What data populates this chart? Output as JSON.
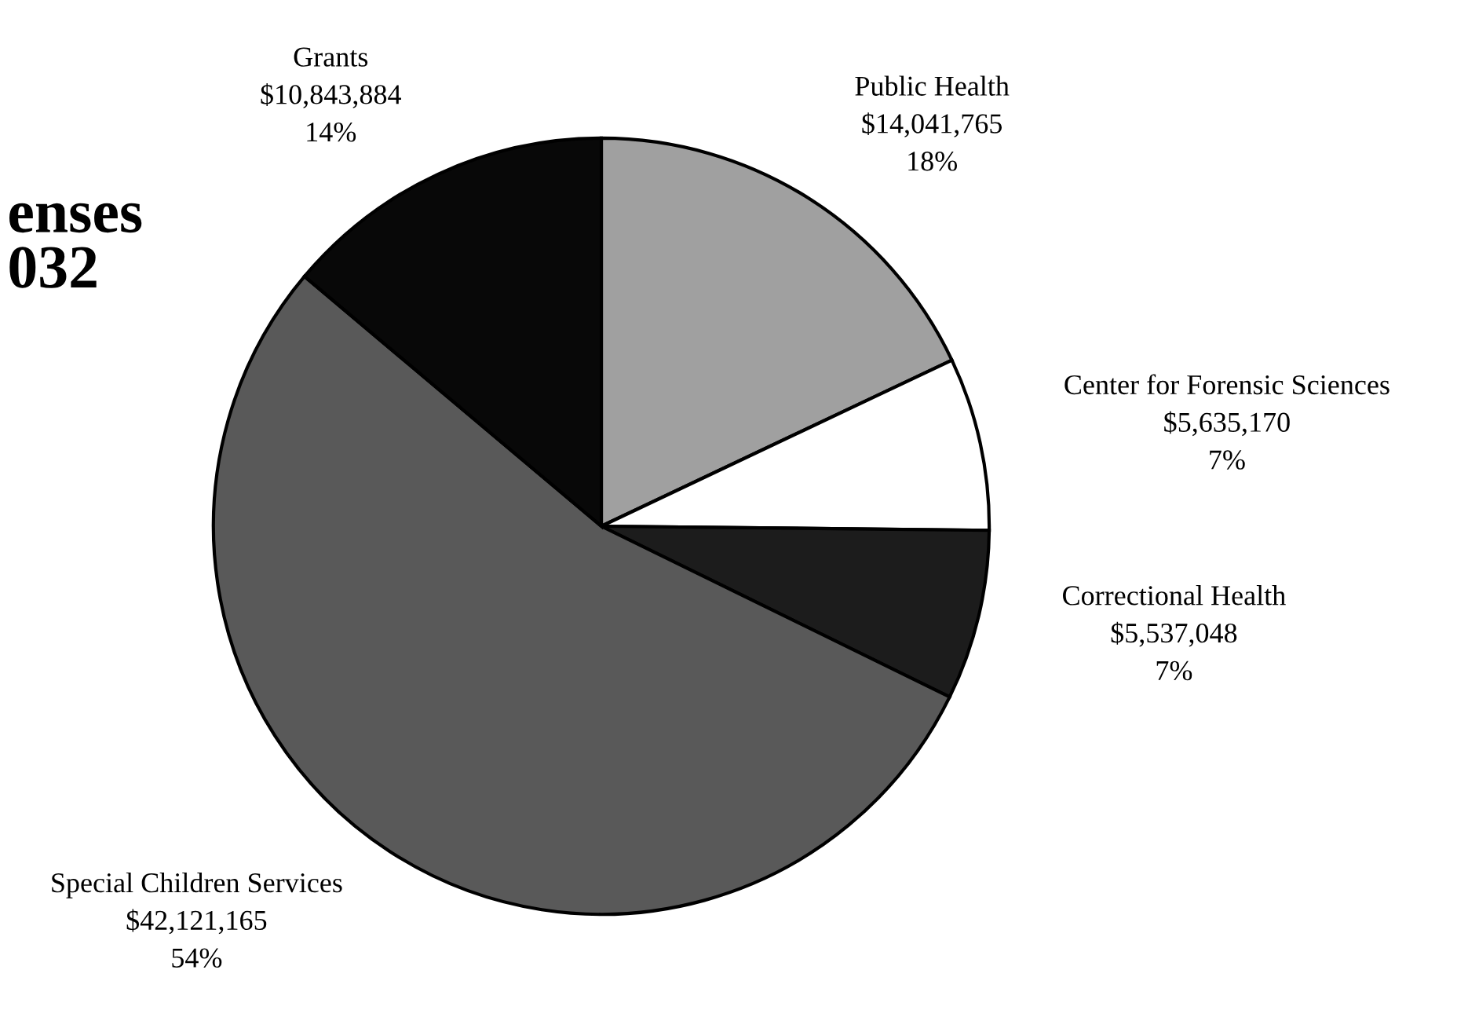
{
  "chart_data": {
    "type": "pie",
    "title": "enses\n032",
    "categories": [
      "Public Health",
      "Center for Forensic Sciences",
      "Correctional Health",
      "Special Children Services",
      "Grants"
    ],
    "values": [
      14041765,
      5635170,
      5537048,
      42121165,
      10843884
    ],
    "colors": [
      "#a0a0a0",
      "#ffffff",
      "#1c1c1c",
      "#595959",
      "#080808"
    ],
    "value_labels": [
      "$14,041,765\n18%",
      "$5,635,170\n7%",
      "$5,537,048\n7%",
      "$42,121,165\n54%",
      "$10,843,884\n14%"
    ]
  }
}
